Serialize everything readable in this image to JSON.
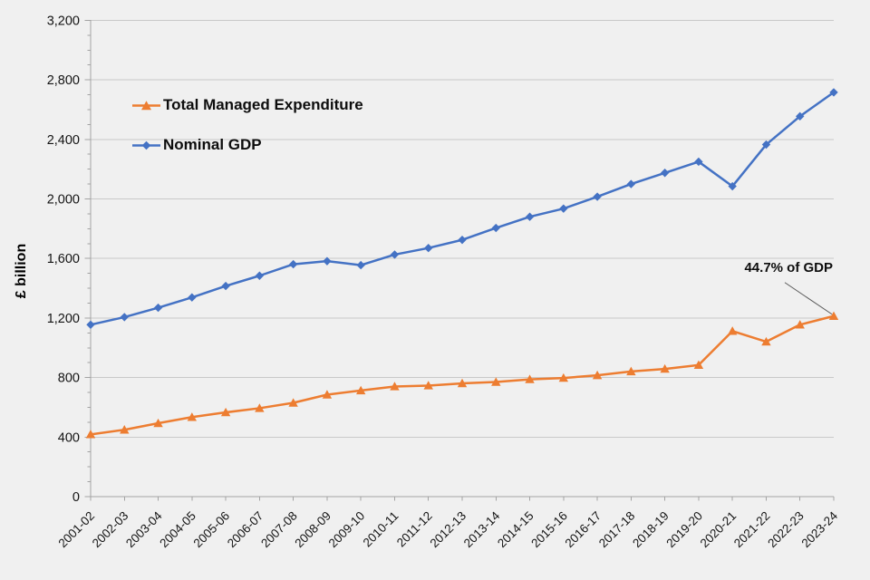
{
  "chart_data": {
    "type": "line",
    "title": "",
    "xlabel": "",
    "ylabel": "£ billion",
    "categories": [
      "2001-02",
      "2002-03",
      "2003-04",
      "2004-05",
      "2005-06",
      "2006-07",
      "2007-08",
      "2008-09",
      "2009-10",
      "2010-11",
      "2011-12",
      "2012-13",
      "2013-14",
      "2014-15",
      "2015-16",
      "2016-17",
      "2017-18",
      "2018-19",
      "2019-20",
      "2020-21",
      "2021-22",
      "2022-23",
      "2023-24"
    ],
    "series": [
      {
        "name": "Total Managed Expenditure",
        "color": "#ED7D31",
        "marker": "triangle",
        "values": [
          418,
          449,
          493,
          534,
          566,
          594,
          630,
          685,
          713,
          740,
          746,
          761,
          770,
          788,
          797,
          815,
          841,
          858,
          884,
          1112,
          1041,
          1155,
          1213
        ]
      },
      {
        "name": "Nominal GDP",
        "color": "#4472C4",
        "marker": "diamond",
        "values": [
          1155,
          1206,
          1269,
          1338,
          1415,
          1484,
          1561,
          1582,
          1555,
          1626,
          1670,
          1725,
          1805,
          1880,
          1935,
          2015,
          2100,
          2175,
          2250,
          2085,
          2365,
          2555,
          2716
        ]
      }
    ],
    "ylim": [
      0,
      3200
    ],
    "ytick_step": 400,
    "ytick_minor_step": 100,
    "ytick_labels": [
      "0",
      "400",
      "800",
      "1,200",
      "1,600",
      "2,000",
      "2,400",
      "2,800",
      "3,200"
    ],
    "grid": true,
    "legend_position": "inside-top-left",
    "annotation": {
      "text": "44.7% of GDP",
      "series": "Total Managed Expenditure",
      "category": "2023-24"
    }
  },
  "colors": {
    "background": "#F0F0F0",
    "gridline": "#C9C9C9",
    "axis": "#A3A3A3",
    "tick_text": "#141414",
    "leader_line": "#595959"
  }
}
